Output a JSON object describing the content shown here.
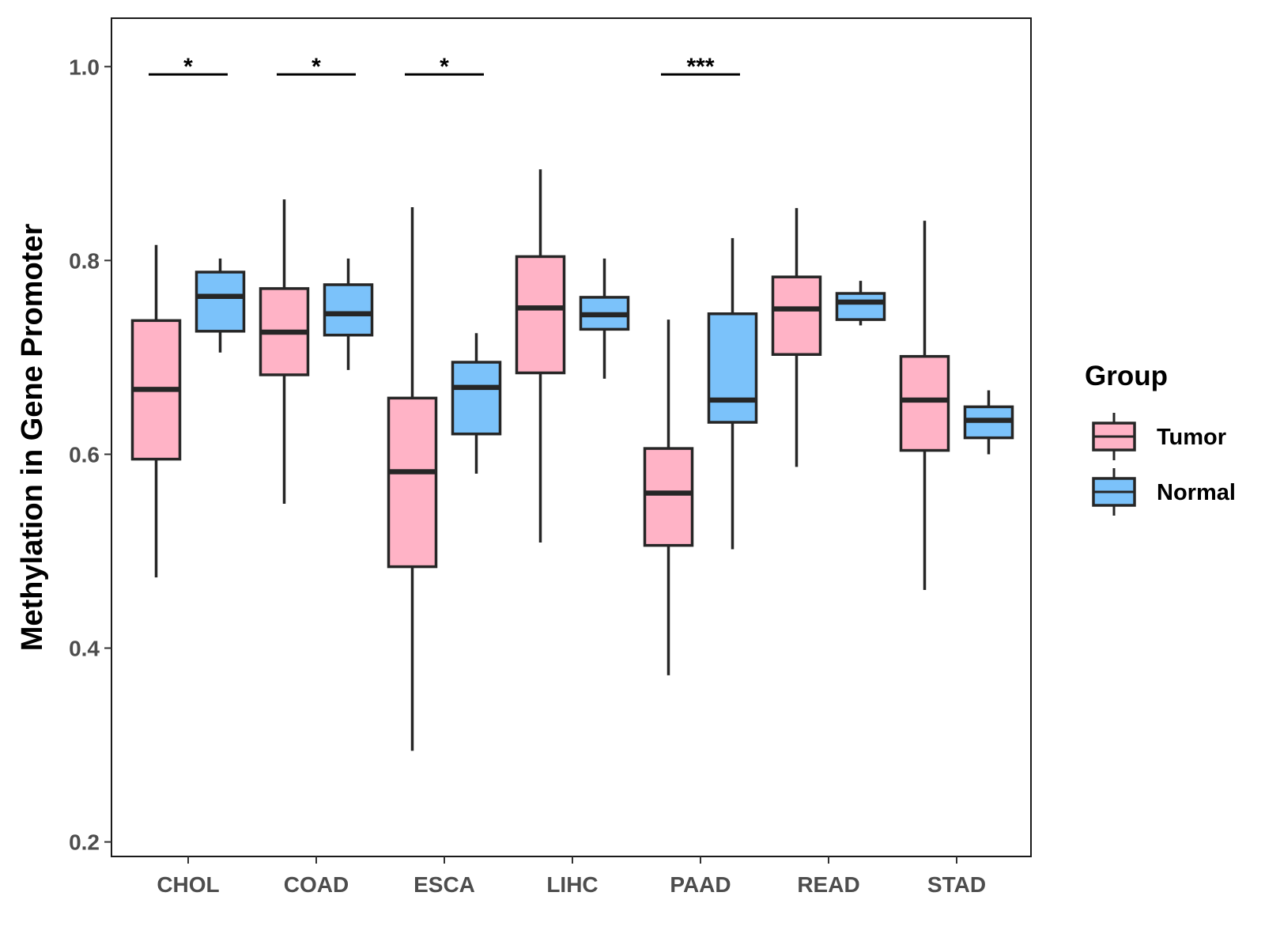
{
  "chart_data": {
    "type": "boxplot",
    "title": "",
    "xlabel": "",
    "ylabel": "Methylation in Gene Promoter",
    "ylim": [
      0.185,
      1.05
    ],
    "yticks": [
      0.2,
      0.4,
      0.6,
      0.8,
      1.0
    ],
    "ytick_labels": [
      "0.2",
      "0.4",
      "0.6",
      "0.8",
      "1.0"
    ],
    "categories": [
      "CHOL",
      "COAD",
      "ESCA",
      "LIHC",
      "PAAD",
      "READ",
      "STAD"
    ],
    "legend": {
      "title": "Group",
      "position": "right",
      "entries": [
        {
          "label": "Tumor",
          "color": "#FFB3C6"
        },
        {
          "label": "Normal",
          "color": "#7BC2FA"
        }
      ]
    },
    "box_edge_color": "#262626",
    "series": [
      {
        "name": "Tumor",
        "color": "#FFB3C6",
        "boxes": [
          {
            "category": "CHOL",
            "whisker_low": 0.473,
            "q1": 0.595,
            "median": 0.667,
            "q3": 0.738,
            "whisker_high": 0.816
          },
          {
            "category": "COAD",
            "whisker_low": 0.549,
            "q1": 0.682,
            "median": 0.726,
            "q3": 0.771,
            "whisker_high": 0.863
          },
          {
            "category": "ESCA",
            "whisker_low": 0.294,
            "q1": 0.484,
            "median": 0.582,
            "q3": 0.658,
            "whisker_high": 0.855
          },
          {
            "category": "LIHC",
            "whisker_low": 0.509,
            "q1": 0.684,
            "median": 0.751,
            "q3": 0.804,
            "whisker_high": 0.894
          },
          {
            "category": "PAAD",
            "whisker_low": 0.372,
            "q1": 0.506,
            "median": 0.56,
            "q3": 0.606,
            "whisker_high": 0.739
          },
          {
            "category": "READ",
            "whisker_low": 0.587,
            "q1": 0.703,
            "median": 0.75,
            "q3": 0.783,
            "whisker_high": 0.854
          },
          {
            "category": "STAD",
            "whisker_low": 0.46,
            "q1": 0.604,
            "median": 0.656,
            "q3": 0.701,
            "whisker_high": 0.841
          }
        ]
      },
      {
        "name": "Normal",
        "color": "#7BC2FA",
        "boxes": [
          {
            "category": "CHOL",
            "whisker_low": 0.705,
            "q1": 0.727,
            "median": 0.763,
            "q3": 0.788,
            "whisker_high": 0.802
          },
          {
            "category": "COAD",
            "whisker_low": 0.687,
            "q1": 0.723,
            "median": 0.745,
            "q3": 0.775,
            "whisker_high": 0.802
          },
          {
            "category": "ESCA",
            "whisker_low": 0.58,
            "q1": 0.621,
            "median": 0.669,
            "q3": 0.695,
            "whisker_high": 0.725
          },
          {
            "category": "LIHC",
            "whisker_low": 0.678,
            "q1": 0.729,
            "median": 0.744,
            "q3": 0.762,
            "whisker_high": 0.802
          },
          {
            "category": "PAAD",
            "whisker_low": 0.502,
            "q1": 0.633,
            "median": 0.656,
            "q3": 0.745,
            "whisker_high": 0.823
          },
          {
            "category": "READ",
            "whisker_low": 0.733,
            "q1": 0.739,
            "median": 0.757,
            "q3": 0.766,
            "whisker_high": 0.779
          },
          {
            "category": "STAD",
            "whisker_low": 0.6,
            "q1": 0.617,
            "median": 0.635,
            "q3": 0.649,
            "whisker_high": 0.666
          }
        ]
      }
    ],
    "significance": [
      {
        "category": "CHOL",
        "label": "*",
        "y": 0.992
      },
      {
        "category": "COAD",
        "label": "*",
        "y": 0.992
      },
      {
        "category": "ESCA",
        "label": "*",
        "y": 0.992
      },
      {
        "category": "PAAD",
        "label": "***",
        "y": 0.992
      }
    ]
  }
}
